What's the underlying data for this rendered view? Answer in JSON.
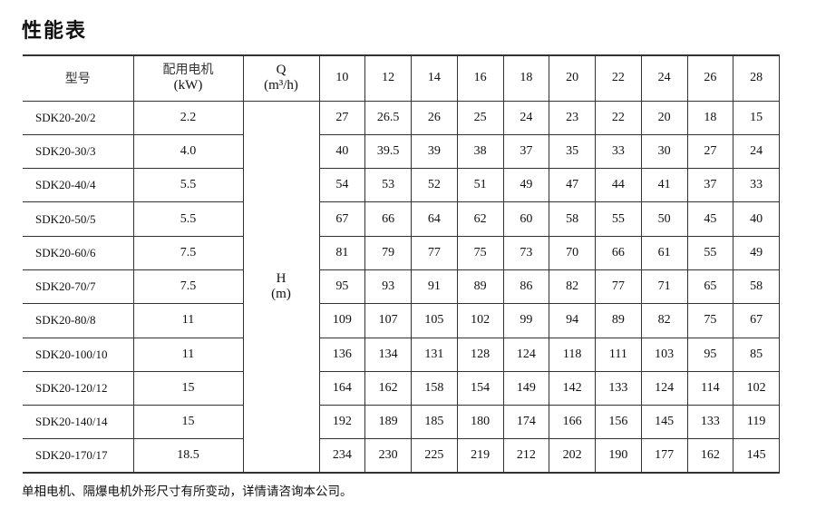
{
  "title": "性能表",
  "table": {
    "headers": {
      "model": "型号",
      "motor_line1": "配用电机",
      "motor_line2": "(kW)",
      "q_line1": "Q",
      "q_line2": "(m³/h)",
      "flows": [
        "10",
        "12",
        "14",
        "16",
        "18",
        "20",
        "22",
        "24",
        "26",
        "28"
      ]
    },
    "h_label_line1": "H",
    "h_label_line2": "(m)",
    "rows": [
      {
        "model": "SDK20-20/2",
        "motor": "2.2",
        "h": [
          "27",
          "26.5",
          "26",
          "25",
          "24",
          "23",
          "22",
          "20",
          "18",
          "15"
        ]
      },
      {
        "model": "SDK20-30/3",
        "motor": "4.0",
        "h": [
          "40",
          "39.5",
          "39",
          "38",
          "37",
          "35",
          "33",
          "30",
          "27",
          "24"
        ]
      },
      {
        "model": "SDK20-40/4",
        "motor": "5.5",
        "h": [
          "54",
          "53",
          "52",
          "51",
          "49",
          "47",
          "44",
          "41",
          "37",
          "33"
        ]
      },
      {
        "model": "SDK20-50/5",
        "motor": "5.5",
        "h": [
          "67",
          "66",
          "64",
          "62",
          "60",
          "58",
          "55",
          "50",
          "45",
          "40"
        ]
      },
      {
        "model": "SDK20-60/6",
        "motor": "7.5",
        "h": [
          "81",
          "79",
          "77",
          "75",
          "73",
          "70",
          "66",
          "61",
          "55",
          "49"
        ]
      },
      {
        "model": "SDK20-70/7",
        "motor": "7.5",
        "h": [
          "95",
          "93",
          "91",
          "89",
          "86",
          "82",
          "77",
          "71",
          "65",
          "58"
        ]
      },
      {
        "model": "SDK20-80/8",
        "motor": "11",
        "h": [
          "109",
          "107",
          "105",
          "102",
          "99",
          "94",
          "89",
          "82",
          "75",
          "67"
        ]
      },
      {
        "model": "SDK20-100/10",
        "motor": "11",
        "h": [
          "136",
          "134",
          "131",
          "128",
          "124",
          "118",
          "111",
          "103",
          "95",
          "85"
        ]
      },
      {
        "model": "SDK20-120/12",
        "motor": "15",
        "h": [
          "164",
          "162",
          "158",
          "154",
          "149",
          "142",
          "133",
          "124",
          "114",
          "102"
        ]
      },
      {
        "model": "SDK20-140/14",
        "motor": "15",
        "h": [
          "192",
          "189",
          "185",
          "180",
          "174",
          "166",
          "156",
          "145",
          "133",
          "119"
        ]
      },
      {
        "model": "SDK20-170/17",
        "motor": "18.5",
        "h": [
          "234",
          "230",
          "225",
          "219",
          "212",
          "202",
          "190",
          "177",
          "162",
          "145"
        ]
      }
    ]
  },
  "note": "单相电机、隔爆电机外形尺寸有所变动，详情请咨询本公司。"
}
